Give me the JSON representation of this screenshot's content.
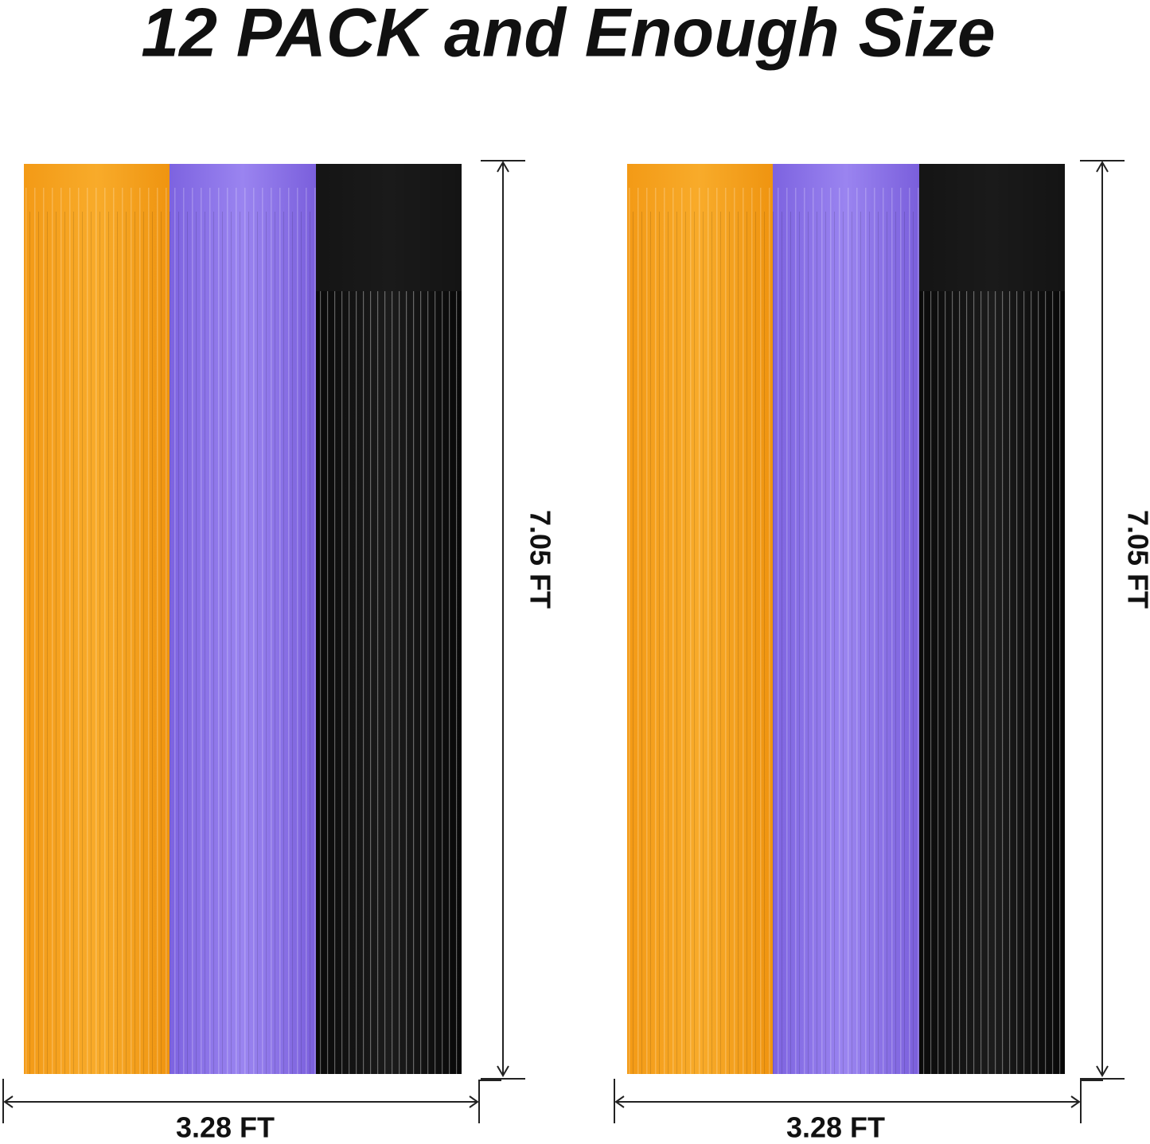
{
  "title": "12 PACK and Enough Size",
  "panels": [
    {
      "height_label": "7.05 FT",
      "width_label": "3.28 FT"
    },
    {
      "height_label": "7.05 FT",
      "width_label": "3.28 FT"
    }
  ]
}
